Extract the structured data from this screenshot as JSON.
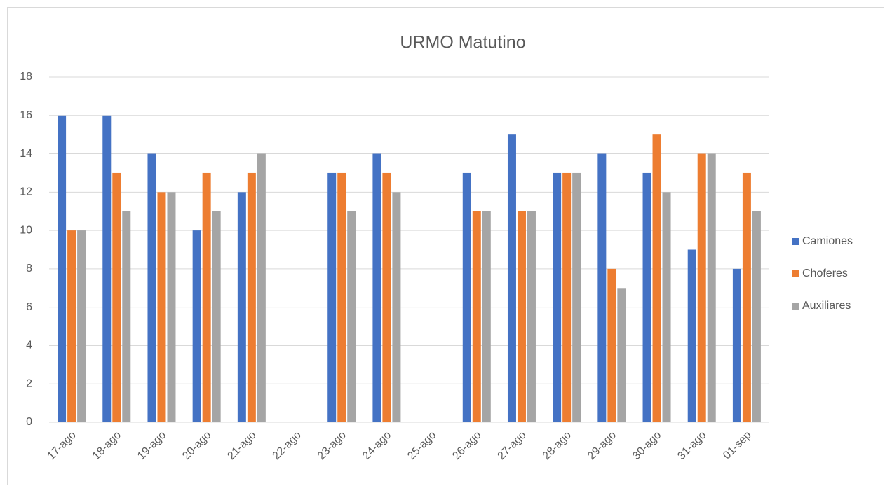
{
  "chart_data": {
    "type": "bar",
    "title": "URMO Matutino",
    "categories": [
      "17-ago",
      "18-ago",
      "19-ago",
      "20-ago",
      "21-ago",
      "22-ago",
      "23-ago",
      "24-ago",
      "25-ago",
      "26-ago",
      "27-ago",
      "28-ago",
      "29-ago",
      "30-ago",
      "31-ago",
      "01-sep"
    ],
    "series": [
      {
        "name": "Camiones",
        "color": "#4472c4",
        "values": [
          16,
          16,
          14,
          10,
          12,
          null,
          13,
          14,
          null,
          13,
          15,
          13,
          14,
          13,
          9,
          8
        ]
      },
      {
        "name": "Choferes",
        "color": "#ed7d31",
        "values": [
          10,
          13,
          12,
          13,
          13,
          null,
          13,
          13,
          null,
          11,
          11,
          13,
          8,
          15,
          14,
          13
        ]
      },
      {
        "name": "Auxiliares",
        "color": "#a5a5a5",
        "values": [
          10,
          11,
          12,
          11,
          14,
          null,
          11,
          12,
          null,
          11,
          11,
          13,
          7,
          12,
          14,
          11
        ]
      }
    ],
    "ylim": [
      0,
      18
    ],
    "yticks": [
      0,
      2,
      4,
      6,
      8,
      10,
      12,
      14,
      16,
      18
    ],
    "grid": true,
    "legend": "right"
  }
}
